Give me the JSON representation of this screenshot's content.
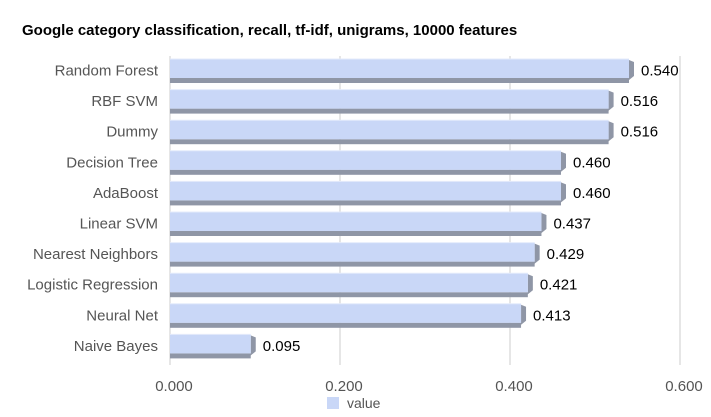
{
  "chart_data": {
    "type": "bar",
    "orientation": "horizontal",
    "title": "Google category classification, recall, tf-idf, unigrams, 10000 features",
    "categories": [
      "Random Forest",
      "RBF SVM",
      "Dummy",
      "Decision Tree",
      "AdaBoost",
      "Linear SVM",
      "Nearest Neighbors",
      "Logistic Regression",
      "Neural Net",
      "Naive Bayes"
    ],
    "values": [
      0.54,
      0.516,
      0.516,
      0.46,
      0.46,
      0.437,
      0.429,
      0.421,
      0.413,
      0.095
    ],
    "value_labels": [
      "0.540",
      "0.516",
      "0.516",
      "0.460",
      "0.460",
      "0.437",
      "0.429",
      "0.421",
      "0.413",
      "0.095"
    ],
    "series": [
      {
        "name": "value",
        "values": [
          0.54,
          0.516,
          0.516,
          0.46,
          0.46,
          0.437,
          0.429,
          0.421,
          0.413,
          0.095
        ]
      }
    ],
    "xlim": [
      0,
      0.6
    ],
    "x_ticks": [
      "0.000",
      "0.200",
      "0.400",
      "0.600"
    ],
    "x_tick_values": [
      0,
      0.2,
      0.4,
      0.6
    ],
    "grid": true,
    "legend_position": "bottom",
    "colors": {
      "bar": "#c9d7f7",
      "bar_shadow": "#8f96a6",
      "grid": "#cccccc",
      "text": "#555555"
    }
  }
}
